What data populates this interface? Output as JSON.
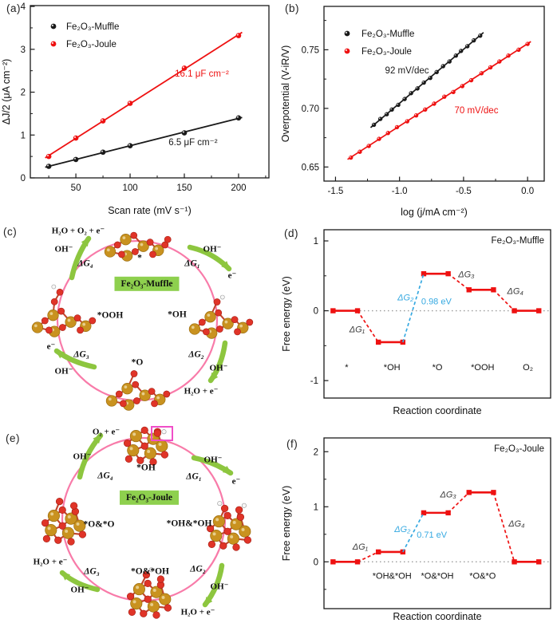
{
  "figure": {
    "panel_tags": {
      "a": "(a)",
      "b": "(b)",
      "c": "(c)",
      "d": "(d)",
      "e": "(e)",
      "f": "(f)"
    }
  },
  "colors": {
    "muffle_black": "#1a1a1a",
    "joule_red": "#ee1111",
    "step_red": "#ee1111",
    "highlight_blue": "#36a9e1",
    "zero_line_gray": "#9a9a9a",
    "ring_pink": "#f87ba9",
    "arrow_green": "#8dc63f",
    "center_box_green": "#8ed04e",
    "atom_fe_gold": "#c9921f",
    "atom_o_red": "#e03428",
    "atom_h_white": "#f7f7f7",
    "highlight_box_magenta": "#f04ec8",
    "dg_label_gray": "#3c3c3c"
  },
  "chart_data": [
    {
      "id": "a",
      "type": "scatter",
      "xlabel": "Scan rate (mV s⁻¹)",
      "ylabel": "ΔJ/2 (μA cm⁻²)",
      "xlim": [
        8,
        228
      ],
      "ylim": [
        0,
        4.02
      ],
      "xticks": [
        50,
        100,
        150,
        200
      ],
      "xtick_labels": [
        "50",
        "100",
        "150",
        "200"
      ],
      "yticks": [
        0,
        1,
        2,
        3,
        4
      ],
      "ytick_labels": [
        "0",
        "1",
        "2",
        "3",
        "4"
      ],
      "xminor": 25,
      "yminor": 0.5,
      "legend_entries": [
        "Fe₂O₃-Muffle",
        "Fe₂O₃-Joule"
      ],
      "series": [
        {
          "name": "Fe₂O₃-Muffle",
          "color": "#1a1a1a",
          "x": [
            25,
            50,
            75,
            100,
            150,
            200
          ],
          "y": [
            0.27,
            0.43,
            0.6,
            0.75,
            1.05,
            1.4
          ],
          "annotation": {
            "text": "6.5 μF cm⁻²",
            "fx": 0.682,
            "fy": 0.81
          }
        },
        {
          "name": "Fe₂O₃-Joule",
          "color": "#ee1111",
          "x": [
            25,
            50,
            75,
            100,
            150,
            200
          ],
          "y": [
            0.5,
            0.93,
            1.33,
            1.74,
            2.56,
            3.32
          ],
          "annotation": {
            "text": "16.1 μF cm⁻²",
            "fx": 0.719,
            "fy": 0.412
          }
        }
      ]
    },
    {
      "id": "b",
      "type": "scatter",
      "xlabel": "log (j/mA cm⁻²)",
      "ylabel": "Overpotential (V-iR/V)",
      "xlim": [
        -1.59,
        0.13
      ],
      "ylim": [
        0.638,
        0.787
      ],
      "xticks": [
        -1.5,
        -1.0,
        -0.5,
        0.0
      ],
      "xtick_labels": [
        "-1.5",
        "-1.0",
        "-0.5",
        "0.0"
      ],
      "yticks": [
        0.65,
        0.7,
        0.75
      ],
      "ytick_labels": [
        "0.65",
        "0.70",
        "0.75"
      ],
      "xminor": 0.25,
      "yminor": 0.025,
      "legend_entries": [
        "Fe₂O₃-Muffle",
        "Fe₂O₃-Joule"
      ],
      "series": [
        {
          "name": "Fe₂O₃-Muffle",
          "color": "#1a1a1a",
          "x": [
            -1.2,
            -1.15,
            -1.1,
            -1.06,
            -1.01,
            -0.96,
            -0.91,
            -0.86,
            -0.81,
            -0.76,
            -0.71,
            -0.66,
            -0.61,
            -0.56,
            -0.52,
            -0.47,
            -0.42,
            -0.37
          ],
          "y": [
            0.686,
            0.691,
            0.695,
            0.699,
            0.703,
            0.708,
            0.713,
            0.717,
            0.722,
            0.726,
            0.731,
            0.736,
            0.74,
            0.745,
            0.749,
            0.753,
            0.758,
            0.762
          ],
          "annotation": {
            "text": "92 mV/dec",
            "fx": 0.377,
            "fy": 0.384
          }
        },
        {
          "name": "Fe₂O₃-Joule",
          "color": "#ee1111",
          "x": [
            -1.38,
            -1.31,
            -1.24,
            -1.16,
            -1.09,
            -1.02,
            -0.94,
            -0.87,
            -0.8,
            -0.73,
            -0.65,
            -0.58,
            -0.51,
            -0.44,
            -0.36,
            -0.29,
            -0.22,
            -0.15,
            -0.07,
            0.0
          ],
          "y": [
            0.658,
            0.663,
            0.668,
            0.674,
            0.679,
            0.684,
            0.689,
            0.694,
            0.699,
            0.704,
            0.71,
            0.714,
            0.719,
            0.724,
            0.73,
            0.735,
            0.74,
            0.745,
            0.75,
            0.755
          ],
          "annotation": {
            "text": "70 mV/dec",
            "fx": 0.692,
            "fy": 0.612
          }
        }
      ]
    },
    {
      "id": "d",
      "type": "step",
      "label_inside": "Fe₂O₃-Muffle",
      "xlabel": "Reaction coordinate",
      "ylabel": "Free energy (eV)",
      "ylim": [
        -1.25,
        1.16
      ],
      "yticks": [
        -1,
        0,
        1
      ],
      "ytick_labels": [
        "-1",
        "0",
        "1"
      ],
      "yminor": 0.5,
      "states": [
        "*",
        "*OH",
        "*O",
        "*OOH",
        "O₂"
      ],
      "levels": [
        0.0,
        -0.45,
        0.53,
        0.3,
        0.0
      ],
      "state_label_y": -0.85,
      "highlight_step": 1,
      "annotations": [
        {
          "text": "ΔG₁",
          "x": 0.73,
          "y": -0.31,
          "color": "#3c3c3c",
          "italic": true
        },
        {
          "text": "ΔG₂",
          "x": 1.8,
          "y": 0.15,
          "color": "#36a9e1",
          "italic": true
        },
        {
          "text": "0.98 eV",
          "x": 2.48,
          "y": 0.09,
          "color": "#36a9e1",
          "italic": false
        },
        {
          "text": "ΔG₃",
          "x": 3.14,
          "y": 0.48,
          "color": "#3c3c3c",
          "italic": true
        },
        {
          "text": "ΔG₄",
          "x": 4.22,
          "y": 0.24,
          "color": "#3c3c3c",
          "italic": true
        }
      ]
    },
    {
      "id": "f",
      "type": "step",
      "label_inside": "Fe₂O₃-Joule",
      "xlabel": "Reaction coordinate",
      "ylabel": "Free energy (eV)",
      "ylim": [
        -0.85,
        2.25
      ],
      "yticks": [
        0,
        1,
        2
      ],
      "ytick_labels": [
        "0",
        "1",
        "2"
      ],
      "yminor": 0.5,
      "states": [
        "",
        "*OH&*OH",
        "*O&*OH",
        "*O&*O",
        ""
      ],
      "levels": [
        0.0,
        0.18,
        0.89,
        1.26,
        0.0
      ],
      "state_label_y": -0.31,
      "highlight_step": 1,
      "annotations": [
        {
          "text": "ΔG₁",
          "x": 0.8,
          "y": 0.22,
          "color": "#3c3c3c",
          "italic": true
        },
        {
          "text": "ΔG₂",
          "x": 1.73,
          "y": 0.54,
          "color": "#36a9e1",
          "italic": true
        },
        {
          "text": "0.71 eV",
          "x": 2.38,
          "y": 0.44,
          "color": "#36a9e1",
          "italic": false
        },
        {
          "text": "ΔG₃",
          "x": 2.74,
          "y": 1.17,
          "color": "#3c3c3c",
          "italic": true
        },
        {
          "text": "ΔG₄",
          "x": 4.25,
          "y": 0.64,
          "color": "#3c3c3c",
          "italic": true
        }
      ]
    }
  ],
  "cycle_c": {
    "center": "Fe₂O₃-Muffle",
    "top_state": "*",
    "right_state": "*OH",
    "bottom_state": "*O",
    "left_state": "*OOH",
    "dg1": "ΔG₁",
    "dg2": "ΔG₂",
    "dg3": "ΔG₃",
    "dg4": "ΔG₄",
    "oh": "OH⁻",
    "e": "e⁻",
    "h2o_e": "H₂O + e⁻",
    "top_product": "H₂O + O₂ + e⁻"
  },
  "cycle_e": {
    "center": "Fe₂O₃-Joule",
    "top_state": "*OH",
    "right_state": "*OH&*OH",
    "bottom_state": "*O&*OH",
    "left_state": "*O&*O",
    "dg1": "ΔG₁",
    "dg2": "ΔG₂",
    "dg3": "ΔG₃",
    "dg4": "ΔG₄",
    "oh": "OH⁻",
    "e": "e⁻",
    "h2o_e": "H₂O + e⁻",
    "top_product": "O₂ + e⁻"
  }
}
